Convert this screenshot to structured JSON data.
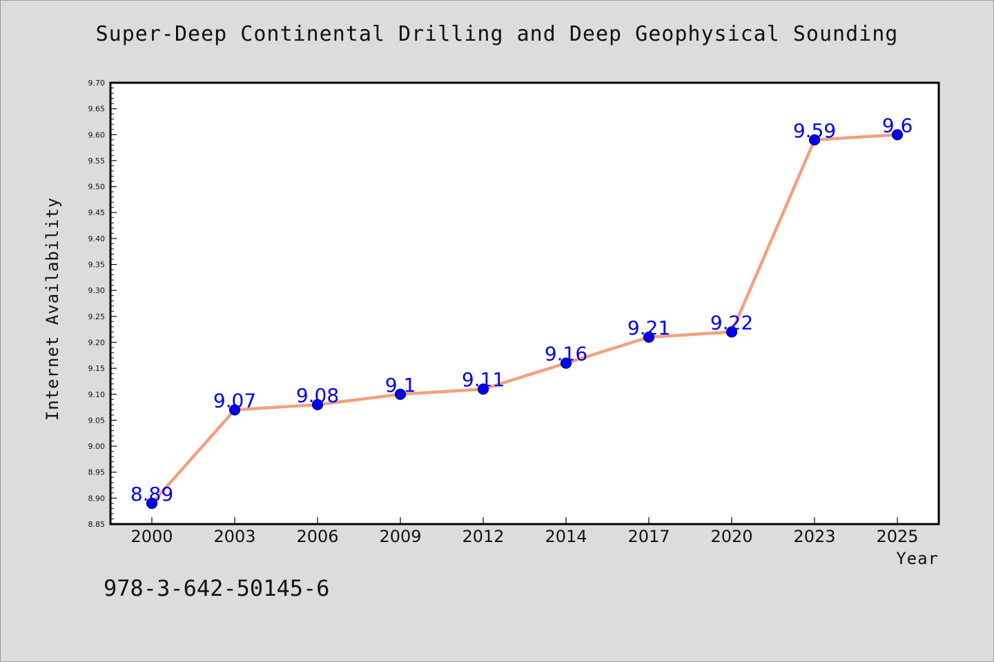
{
  "chart_data": {
    "type": "line",
    "title": "Super-Deep Continental Drilling and Deep Geophysical Sounding",
    "xlabel": "Year",
    "ylabel": "Internet Availability",
    "categories": [
      "2000",
      "2003",
      "2006",
      "2009",
      "2012",
      "2014",
      "2017",
      "2020",
      "2023",
      "2025"
    ],
    "series": [
      {
        "values": [
          8.89,
          9.07,
          9.08,
          9.1,
          9.11,
          9.16,
          9.21,
          9.22,
          9.59,
          9.6
        ],
        "data_labels": [
          "8.89",
          "9.07",
          "9.08",
          "9.1",
          "9.11",
          "9.16",
          "9.21",
          "9.22",
          "9.59",
          "9.6"
        ]
      }
    ],
    "ylim": [
      8.85,
      9.7
    ],
    "yticks": [
      "8.85",
      "8.90",
      "8.95",
      "9.00",
      "9.05",
      "9.10",
      "9.15",
      "9.20",
      "9.25",
      "9.30",
      "9.35",
      "9.40",
      "9.45",
      "9.50",
      "9.55",
      "9.60",
      "9.65",
      "9.70"
    ],
    "grid": false,
    "colors": {
      "line": "#f4a07f",
      "marker": "#0000ee",
      "marker_edge": "#000080",
      "label": "#0000ee"
    }
  },
  "footer_text": "978-3-642-50145-6"
}
